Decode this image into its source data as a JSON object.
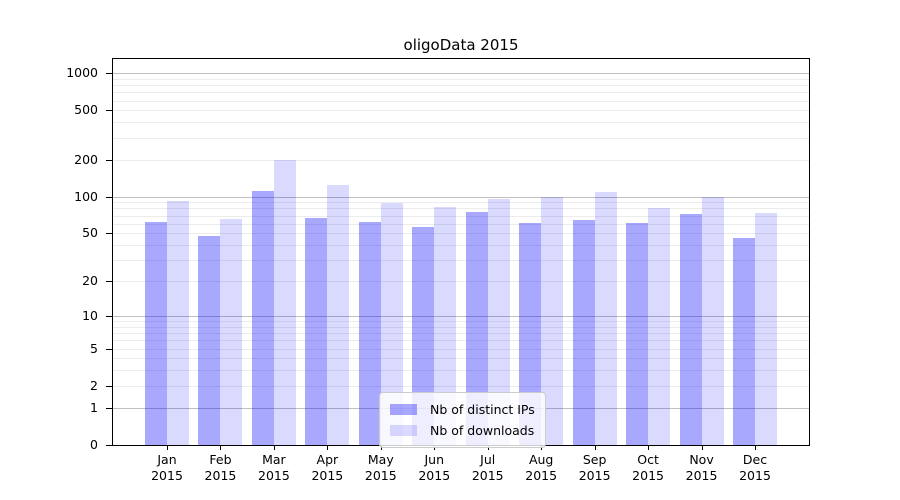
{
  "title": "oligoData 2015",
  "colors": {
    "distinct_ips_bar": "rgba(0,0,255,0.34)",
    "downloads_bar": "rgba(0,0,255,0.145)",
    "major_gridline": "#bfbfbf",
    "minor_gridline": "#ececec",
    "axis": "#000000"
  },
  "y_axis": {
    "scale": "log10(value+1)",
    "ticks": [
      1000,
      500,
      200,
      100,
      50,
      20,
      10,
      5,
      2,
      1,
      0
    ],
    "major_gridlines": [
      1,
      10,
      100,
      1000
    ],
    "minor_gridlines": [
      2,
      3,
      4,
      5,
      6,
      7,
      8,
      9,
      20,
      30,
      40,
      50,
      60,
      70,
      80,
      90,
      200,
      300,
      400,
      500,
      600,
      700,
      800,
      900
    ]
  },
  "x_axis": {
    "months": [
      "Jan",
      "Feb",
      "Mar",
      "Apr",
      "May",
      "Jun",
      "Jul",
      "Aug",
      "Sep",
      "Oct",
      "Nov",
      "Dec"
    ],
    "year": "2015"
  },
  "legend": {
    "items": [
      {
        "label": "Nb of distinct IPs",
        "color": "rgba(0,0,255,0.34)"
      },
      {
        "label": "Nb of downloads",
        "color": "rgba(0,0,255,0.145)"
      }
    ]
  },
  "chart_data": {
    "type": "bar",
    "title": "oligoData 2015",
    "categories": [
      "Jan 2015",
      "Feb 2015",
      "Mar 2015",
      "Apr 2015",
      "May 2015",
      "Jun 2015",
      "Jul 2015",
      "Aug 2015",
      "Sep 2015",
      "Oct 2015",
      "Nov 2015",
      "Dec 2015"
    ],
    "series": [
      {
        "name": "Nb of distinct IPs",
        "values": [
          62,
          48,
          112,
          67,
          62,
          56,
          75,
          61,
          64,
          61,
          72,
          46
        ]
      },
      {
        "name": "Nb of downloads",
        "values": [
          92,
          66,
          200,
          125,
          88,
          82,
          95,
          100,
          110,
          81,
          100,
          74
        ]
      }
    ],
    "yscale": "log1p",
    "ylim": [
      0,
      1300
    ],
    "grid": true,
    "legend_position": "lower center inside"
  }
}
